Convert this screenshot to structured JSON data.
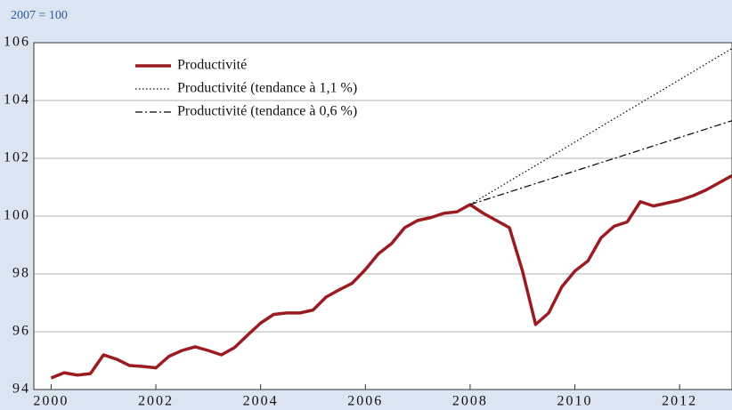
{
  "chart_data": {
    "type": "line",
    "subtitle": "2007 = 100",
    "xlim": [
      1999.67,
      2013.0
    ],
    "xticks": [
      2000,
      2002,
      2004,
      2006,
      2008,
      2010,
      2012
    ],
    "ylim": [
      94,
      106
    ],
    "yticks": [
      94,
      96,
      98,
      100,
      102,
      104,
      106
    ],
    "grid": true,
    "legend": "top-left",
    "series": [
      {
        "name": "Productivité",
        "color": "#9b1c20",
        "style": "solid",
        "x": [
          2000,
          2000.25,
          2000.5,
          2000.75,
          2001,
          2001.25,
          2001.5,
          2001.75,
          2002,
          2002.25,
          2002.5,
          2002.75,
          2003,
          2003.25,
          2003.5,
          2003.75,
          2004,
          2004.25,
          2004.5,
          2004.75,
          2005,
          2005.25,
          2005.5,
          2005.75,
          2006,
          2006.25,
          2006.5,
          2006.75,
          2007,
          2007.25,
          2007.5,
          2007.75,
          2008,
          2008.25,
          2008.5,
          2008.75,
          2009,
          2009.25,
          2009.5,
          2009.75,
          2010,
          2010.25,
          2010.5,
          2010.75,
          2011,
          2011.25,
          2011.5,
          2011.75,
          2012,
          2012.25,
          2012.5,
          2012.75,
          2013
        ],
        "values": [
          94.4,
          94.58,
          94.5,
          94.55,
          95.2,
          95.05,
          94.83,
          94.8,
          94.75,
          95.15,
          95.35,
          95.48,
          95.35,
          95.2,
          95.45,
          95.88,
          96.3,
          96.6,
          96.65,
          96.65,
          96.75,
          97.2,
          97.45,
          97.68,
          98.15,
          98.7,
          99.05,
          99.6,
          99.85,
          99.95,
          100.1,
          100.15,
          100.4,
          100.1,
          99.85,
          99.6,
          98.1,
          96.25,
          96.65,
          97.55,
          98.1,
          98.45,
          99.25,
          99.65,
          99.8,
          100.5,
          100.35,
          100.45,
          100.55,
          100.7,
          100.9,
          101.15,
          101.4
        ]
      },
      {
        "name": "Productivité (tendance à 1,1 %)",
        "color": "#000000",
        "style": "dotted",
        "x": [
          2008,
          2013
        ],
        "values": [
          100.4,
          105.8
        ]
      },
      {
        "name": "Productivité (tendance à 0,6 %)",
        "color": "#000000",
        "style": "dashdot",
        "x": [
          2008,
          2013
        ],
        "values": [
          100.4,
          103.3
        ]
      }
    ]
  }
}
